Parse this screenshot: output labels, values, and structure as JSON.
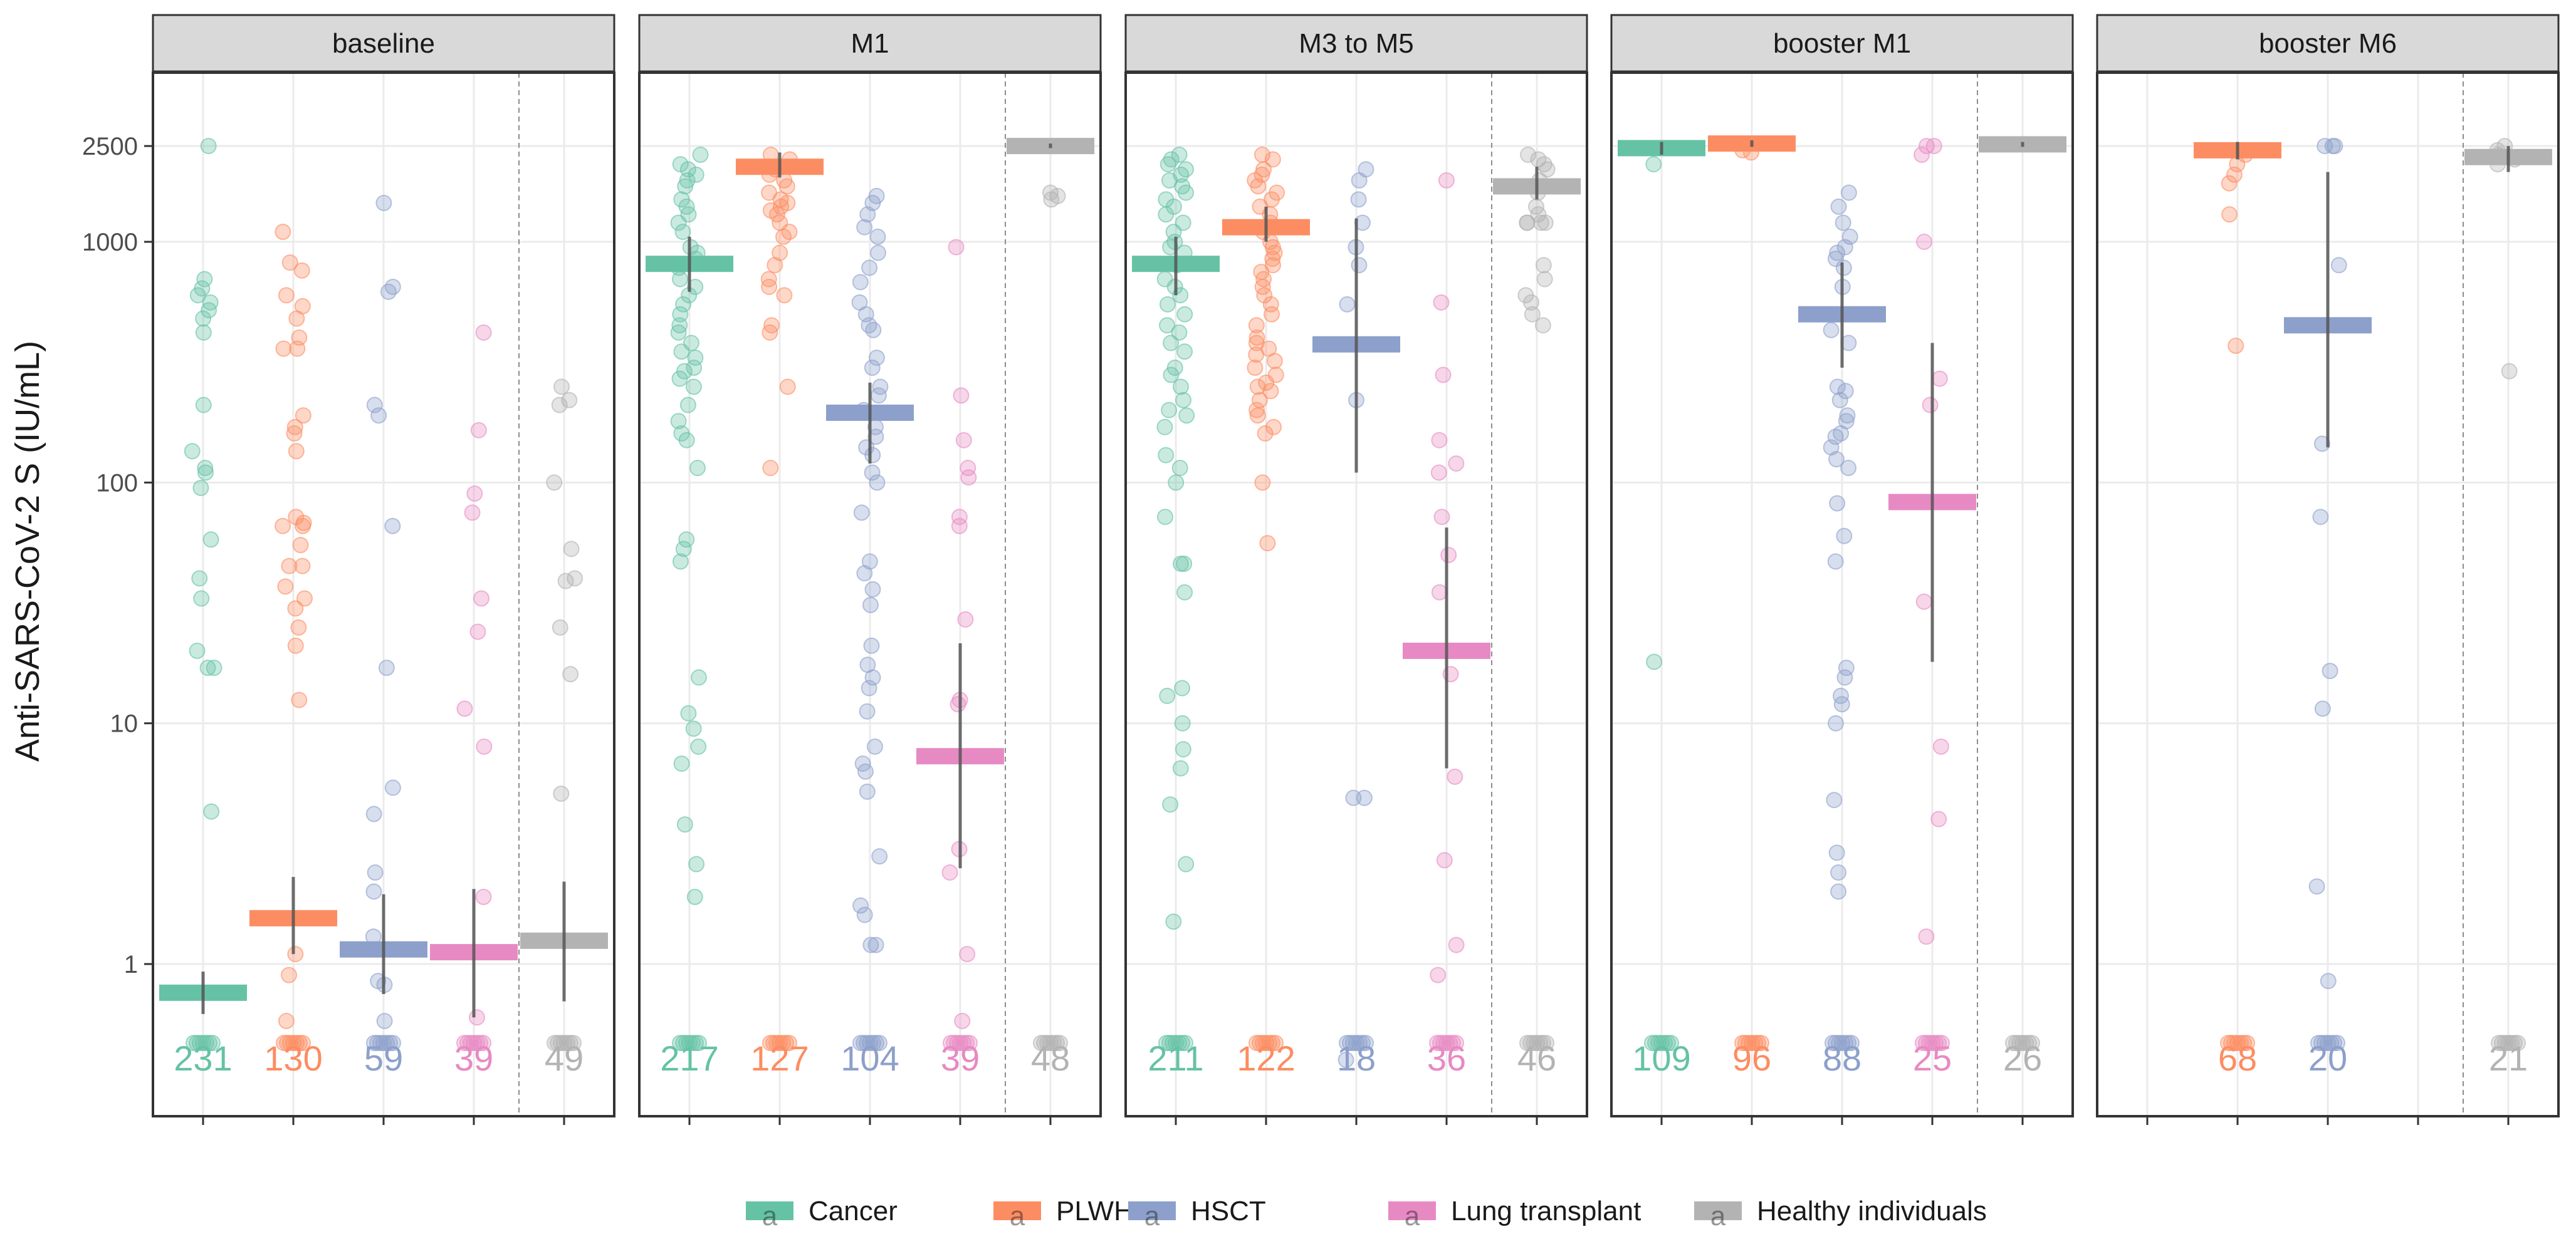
{
  "chart_data": {
    "type": "scatter",
    "ylabel": "Anti-SARS-CoV-2 S (IU/mL)",
    "xlabel": "",
    "yscale": "log",
    "ylim": [
      0.3,
      4500
    ],
    "yticks": [
      1,
      10,
      100,
      1000,
      2500
    ],
    "ytick_labels": [
      "1",
      "10",
      "100",
      "1000",
      "2500"
    ],
    "groups": [
      {
        "key": "cancer",
        "name": "Cancer",
        "color": "#66c2a5"
      },
      {
        "key": "plwh",
        "name": "PLWH",
        "color": "#fc8d62"
      },
      {
        "key": "hsct",
        "name": "HSCT",
        "color": "#8da0cb"
      },
      {
        "key": "lung",
        "name": "Lung transplant",
        "color": "#e78ac3"
      },
      {
        "key": "healthy",
        "name": "Healthy individuals",
        "color": "#b3b3b3"
      }
    ],
    "legend_glyph": "a",
    "legend_position": "bottom",
    "panels": [
      {
        "title": "baseline",
        "series": [
          {
            "group": "cancer",
            "n": "231",
            "median": 0.76,
            "ci": [
              0.62,
              0.93
            ],
            "high_points": [
              2500,
              700,
              640,
              600,
              560,
              520,
              480,
              420,
              210,
              135,
              115,
              110,
              95,
              58,
              40,
              33,
              20,
              17,
              17,
              4.3
            ]
          },
          {
            "group": "plwh",
            "n": "130",
            "median": 1.55,
            "ci": [
              1.1,
              2.3
            ],
            "high_points": [
              1100,
              820,
              760,
              600,
              540,
              480,
              400,
              360,
              360,
              190,
              170,
              160,
              135,
              72,
              68,
              66,
              66,
              55,
              45,
              45,
              37,
              33,
              30,
              25,
              21,
              12.5,
              1.1,
              0.9,
              0.58
            ]
          },
          {
            "group": "hsct",
            "n": "59",
            "median": 1.15,
            "ci": [
              0.75,
              1.95
            ],
            "high_points": [
              1450,
              650,
              620,
              210,
              190,
              66,
              17,
              5.4,
              4.2,
              2.4,
              2.0,
              1.3,
              0.85,
              0.82,
              0.58
            ]
          },
          {
            "group": "lung",
            "n": "39",
            "median": 1.12,
            "ci": [
              0.6,
              2.05
            ],
            "high_points": [
              420,
              165,
              90,
              75,
              33,
              24,
              11.5,
              8,
              1.9,
              0.6
            ]
          },
          {
            "group": "healthy",
            "n": "49",
            "median": 1.25,
            "ci": [
              0.7,
              2.2
            ],
            "high_points": [
              250,
              220,
              210,
              100,
              53,
              40,
              39,
              25,
              16,
              5.1
            ]
          }
        ]
      },
      {
        "title": "M1",
        "series": [
          {
            "group": "cancer",
            "n": "217",
            "median": 810,
            "ci": [
              620,
              1050
            ],
            "high_points": [
              2300,
              2100,
              2000,
              1900,
              1800,
              1700,
              1500,
              1400,
              1300,
              1200,
              1100,
              950,
              900,
              850,
              780,
              700,
              650,
              600,
              550,
              500,
              450,
              420,
              380,
              350,
              330,
              300,
              290,
              270,
              250,
              210,
              180,
              160,
              150,
              115,
              58,
              53,
              47,
              15.5,
              11,
              9.5,
              8,
              6.8,
              3.8,
              2.6,
              1.9
            ]
          },
          {
            "group": "plwh",
            "n": "127",
            "median": 2050,
            "ci": [
              1850,
              2350
            ],
            "high_points": [
              2300,
              2200,
              2000,
              1900,
              1800,
              1700,
              1600,
              1500,
              1450,
              1400,
              1350,
              1300,
              1200,
              1100,
              1050,
              900,
              800,
              700,
              650,
              600,
              450,
              420,
              250,
              115
            ]
          },
          {
            "group": "hsct",
            "n": "104",
            "median": 195,
            "ci": [
              120,
              260
            ],
            "high_points": [
              1550,
              1450,
              1300,
              1150,
              1050,
              900,
              780,
              680,
              560,
              500,
              450,
              430,
              330,
              300,
              250,
              230,
              200,
              170,
              155,
              140,
              130,
              110,
              100,
              75,
              47,
              42,
              36,
              31,
              21,
              17.5,
              15.5,
              14,
              11.2,
              8,
              6.8,
              6.3,
              5.2,
              2.8,
              1.75,
              1.6,
              1.2,
              1.2
            ]
          },
          {
            "group": "lung",
            "n": "39",
            "median": 7.3,
            "ci": [
              2.5,
              21.5
            ],
            "high_points": [
              950,
              230,
              150,
              115,
              105,
              72,
              66,
              27,
              12.5,
              12,
              3,
              2.4,
              1.1,
              0.58
            ]
          },
          {
            "group": "healthy",
            "n": "48",
            "median": 2500,
            "ci": [
              2450,
              2560
            ],
            "high_points": [
              1600,
              1550,
              1500
            ]
          }
        ]
      },
      {
        "title": "M3 to M5",
        "series": [
          {
            "group": "cancer",
            "n": "211",
            "median": 810,
            "ci": [
              600,
              1050
            ],
            "high_points": [
              2300,
              2200,
              2100,
              2000,
              1900,
              1800,
              1700,
              1600,
              1500,
              1400,
              1300,
              1200,
              1100,
              1000,
              950,
              900,
              800,
              700,
              650,
              600,
              550,
              500,
              450,
              420,
              380,
              350,
              300,
              280,
              250,
              220,
              200,
              190,
              170,
              130,
              115,
              100,
              72,
              46,
              46,
              35,
              14,
              13,
              10,
              7.8,
              6.5,
              4.6,
              2.6,
              1.5
            ]
          },
          {
            "group": "plwh",
            "n": "122",
            "median": 1150,
            "ci": [
              1000,
              1400
            ],
            "high_points": [
              2300,
              2200,
              2000,
              1900,
              1800,
              1700,
              1600,
              1500,
              1400,
              1300,
              1200,
              1100,
              1000,
              950,
              900,
              850,
              800,
              750,
              700,
              650,
              600,
              550,
              500,
              450,
              400,
              380,
              360,
              340,
              320,
              300,
              280,
              260,
              250,
              240,
              220,
              200,
              190,
              170,
              160,
              100,
              56
            ]
          },
          {
            "group": "hsct",
            "n": "18",
            "median": 375,
            "ci": [
              110,
              1250
            ],
            "high_points": [
              2000,
              1800,
              1500,
              1200,
              950,
              800,
              550,
              220,
              4.9,
              4.9,
              0.4
            ]
          },
          {
            "group": "lung",
            "n": "36",
            "median": 20,
            "ci": [
              6.5,
              65
            ],
            "high_points": [
              1800,
              560,
              280,
              150,
              120,
              110,
              72,
              50,
              35,
              16,
              6,
              2.7,
              1.2,
              0.9
            ]
          },
          {
            "group": "healthy",
            "n": "46",
            "median": 1700,
            "ci": [
              1500,
              2050
            ],
            "high_points": [
              2300,
              2200,
              2100,
              2000,
              1800,
              1600,
              1400,
              1300,
              1200,
              1200,
              1200,
              1200,
              800,
              700,
              600,
              560,
              500,
              450
            ]
          }
        ]
      },
      {
        "title": "booster M1",
        "series": [
          {
            "group": "cancer",
            "n": "109",
            "median": 2450,
            "ci": [
              2300,
              2600
            ],
            "high_points": [
              2100,
              18
            ]
          },
          {
            "group": "plwh",
            "n": "96",
            "median": 2560,
            "ci": [
              2480,
              2640
            ],
            "high_points": [
              2400,
              2350
            ]
          },
          {
            "group": "hsct",
            "n": "88",
            "median": 500,
            "ci": [
              300,
              820
            ],
            "high_points": [
              1600,
              1400,
              1200,
              1050,
              950,
              900,
              850,
              780,
              650,
              500,
              430,
              380,
              250,
              240,
              220,
              190,
              180,
              160,
              155,
              140,
              125,
              115,
              82,
              60,
              47,
              17,
              15.5,
              13,
              12,
              10,
              4.8,
              2.9,
              2.4,
              2
            ]
          },
          {
            "group": "lung",
            "n": "25",
            "median": 83,
            "ci": [
              18,
              380
            ],
            "high_points": [
              2500,
              2500,
              2300,
              1000,
              270,
              210,
              32,
              8,
              4,
              1.3
            ]
          },
          {
            "group": "healthy",
            "n": "26",
            "median": 2540,
            "ci": [
              2480,
              2600
            ],
            "high_points": []
          }
        ]
      },
      {
        "title": "booster M6",
        "series": [
          {
            "group": "plwh",
            "n": "68",
            "median": 2400,
            "ci": [
              2200,
              2600
            ],
            "high_points": [
              2300,
              2100,
              1900,
              1750,
              1300,
              370
            ]
          },
          {
            "group": "hsct",
            "n": "20",
            "median": 450,
            "ci": [
              140,
              1950
            ],
            "high_points": [
              2500,
              2500,
              2500,
              800,
              145,
              72,
              16.5,
              11.5,
              2.1,
              0.85
            ]
          },
          {
            "group": "healthy",
            "n": "21",
            "median": 2250,
            "ci": [
              1950,
              2500
            ],
            "high_points": [
              2500,
              2400,
              2300,
              2200,
              2100,
              290
            ]
          }
        ]
      }
    ]
  }
}
